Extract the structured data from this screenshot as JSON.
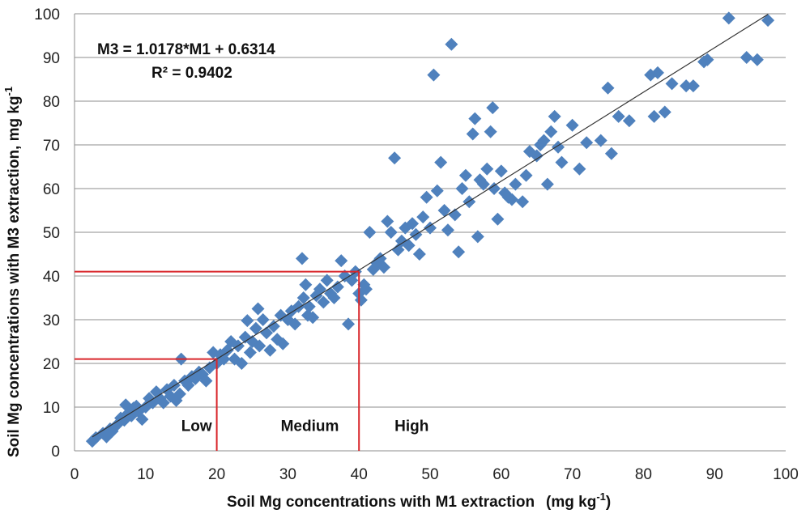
{
  "chart_data": {
    "type": "scatter",
    "xlabel": "Soil Mg concentrations with M1 extraction",
    "xlabel_units": "(mg kg",
    "xlabel_units_sup": "-1",
    "xlabel_units_close": ")",
    "ylabel": "Soil Mg concentrations with M3 extraction, mg kg",
    "ylabel_sup": "-1",
    "xlim": [
      0,
      100
    ],
    "ylim": [
      0,
      100
    ],
    "xticks": [
      0,
      10,
      20,
      30,
      40,
      50,
      60,
      70,
      80,
      90,
      100
    ],
    "yticks": [
      0,
      10,
      20,
      30,
      40,
      50,
      60,
      70,
      80,
      90,
      100
    ],
    "grid": "horizontal",
    "marker_color": "#4F81BD",
    "trendline": {
      "equation": "M3 = 1.0178*M1 + 0.6314",
      "r2_label": "R² = 0.9402",
      "slope": 1.0178,
      "intercept": 0.6314,
      "x_range": [
        2.5,
        97.5
      ],
      "color": "#333333"
    },
    "thresholds": {
      "color": "#d9262b",
      "lines": [
        {
          "x": 20,
          "y": 21
        },
        {
          "x": 40,
          "y": 41
        }
      ]
    },
    "zones": [
      {
        "label": "Low",
        "x": 15,
        "y": 4.5
      },
      {
        "label": "Medium",
        "x": 29,
        "y": 4.5
      },
      {
        "label": "High",
        "x": 45,
        "y": 4.5
      }
    ],
    "points": [
      [
        2.5,
        2.2
      ],
      [
        3,
        3
      ],
      [
        4,
        4
      ],
      [
        4.5,
        3.2
      ],
      [
        5,
        5
      ],
      [
        5.3,
        4.5
      ],
      [
        6,
        6
      ],
      [
        6.5,
        7.5
      ],
      [
        7,
        7
      ],
      [
        7.2,
        10.5
      ],
      [
        7.5,
        8.5
      ],
      [
        8,
        8
      ],
      [
        8.3,
        9.8
      ],
      [
        8.7,
        10.2
      ],
      [
        9,
        9
      ],
      [
        9.5,
        7.2
      ],
      [
        10,
        10
      ],
      [
        10.5,
        12
      ],
      [
        11,
        11
      ],
      [
        11.5,
        13.5
      ],
      [
        12,
        12
      ],
      [
        12.5,
        11
      ],
      [
        13,
        14
      ],
      [
        13.5,
        12.5
      ],
      [
        14,
        15
      ],
      [
        14.3,
        11.5
      ],
      [
        14.8,
        13
      ],
      [
        15,
        21
      ],
      [
        15.5,
        16
      ],
      [
        16,
        15
      ],
      [
        16.5,
        17
      ],
      [
        17,
        16.5
      ],
      [
        17.5,
        18
      ],
      [
        18,
        17.5
      ],
      [
        18.5,
        16
      ],
      [
        19,
        19
      ],
      [
        19.5,
        22.5
      ],
      [
        20,
        20
      ],
      [
        20.5,
        22
      ],
      [
        21,
        21
      ],
      [
        21.5,
        23
      ],
      [
        22,
        25
      ],
      [
        22.5,
        21
      ],
      [
        23,
        24
      ],
      [
        23.5,
        20
      ],
      [
        24,
        26
      ],
      [
        24.3,
        29.8
      ],
      [
        24.7,
        22.5
      ],
      [
        25,
        25
      ],
      [
        25.5,
        28
      ],
      [
        25.8,
        32.5
      ],
      [
        26,
        24
      ],
      [
        26.5,
        30
      ],
      [
        27,
        27
      ],
      [
        27.5,
        23
      ],
      [
        28,
        28.5
      ],
      [
        28.5,
        25.5
      ],
      [
        29,
        31
      ],
      [
        29.3,
        24.5
      ],
      [
        30,
        30
      ],
      [
        30.5,
        32
      ],
      [
        31,
        29
      ],
      [
        31.5,
        33
      ],
      [
        32,
        44
      ],
      [
        32.2,
        35
      ],
      [
        32.5,
        38
      ],
      [
        32.8,
        31
      ],
      [
        33,
        33
      ],
      [
        33.5,
        30.5
      ],
      [
        34,
        35.5
      ],
      [
        34.5,
        37
      ],
      [
        35,
        34
      ],
      [
        35.5,
        39
      ],
      [
        36,
        36
      ],
      [
        36.5,
        35
      ],
      [
        37,
        37.5
      ],
      [
        37.5,
        43.5
      ],
      [
        38,
        40
      ],
      [
        38.5,
        29
      ],
      [
        39,
        39
      ],
      [
        39.5,
        41
      ],
      [
        40,
        36
      ],
      [
        40.3,
        34.5
      ],
      [
        40.7,
        38
      ],
      [
        41,
        37
      ],
      [
        41.5,
        50
      ],
      [
        42,
        41.5
      ],
      [
        42.5,
        43
      ],
      [
        43,
        44
      ],
      [
        43.5,
        42
      ],
      [
        44,
        52.5
      ],
      [
        44.5,
        50
      ],
      [
        45,
        67
      ],
      [
        45.5,
        46
      ],
      [
        46,
        48
      ],
      [
        46.5,
        51
      ],
      [
        47,
        47
      ],
      [
        47.5,
        52
      ],
      [
        48,
        49.5
      ],
      [
        48.5,
        45
      ],
      [
        49,
        53.5
      ],
      [
        49.5,
        58
      ],
      [
        50,
        51
      ],
      [
        50.5,
        86
      ],
      [
        51,
        59.5
      ],
      [
        51.5,
        66
      ],
      [
        52,
        55
      ],
      [
        52.5,
        50.5
      ],
      [
        53,
        93
      ],
      [
        53.5,
        54
      ],
      [
        54,
        45.5
      ],
      [
        54.5,
        60
      ],
      [
        55,
        63
      ],
      [
        55.5,
        57
      ],
      [
        56,
        72.5
      ],
      [
        56.3,
        76
      ],
      [
        56.7,
        49
      ],
      [
        57,
        62
      ],
      [
        57.5,
        61
      ],
      [
        58,
        64.5
      ],
      [
        58.5,
        73
      ],
      [
        58.8,
        78.5
      ],
      [
        59,
        60
      ],
      [
        59.5,
        53
      ],
      [
        60,
        64
      ],
      [
        60.5,
        59
      ],
      [
        61,
        58
      ],
      [
        61.5,
        57.5
      ],
      [
        62,
        61
      ],
      [
        63,
        57
      ],
      [
        63.5,
        63
      ],
      [
        64,
        68.5
      ],
      [
        65,
        67.5
      ],
      [
        65.5,
        70
      ],
      [
        66,
        71
      ],
      [
        66.5,
        61
      ],
      [
        67,
        73
      ],
      [
        67.5,
        76.5
      ],
      [
        68,
        69.5
      ],
      [
        68.5,
        66
      ],
      [
        70,
        74.5
      ],
      [
        71,
        64.5
      ],
      [
        72,
        70.5
      ],
      [
        74,
        71
      ],
      [
        75,
        83
      ],
      [
        75.5,
        68
      ],
      [
        76.5,
        76.5
      ],
      [
        78,
        75.5
      ],
      [
        81,
        86
      ],
      [
        81.5,
        76.5
      ],
      [
        82,
        86.5
      ],
      [
        83,
        77.5
      ],
      [
        84,
        84
      ],
      [
        86,
        83.5
      ],
      [
        87,
        83.5
      ],
      [
        88.5,
        89
      ],
      [
        89,
        89.5
      ],
      [
        92,
        99
      ],
      [
        94.5,
        90
      ],
      [
        96,
        89.5
      ],
      [
        97.5,
        98.5
      ]
    ]
  }
}
